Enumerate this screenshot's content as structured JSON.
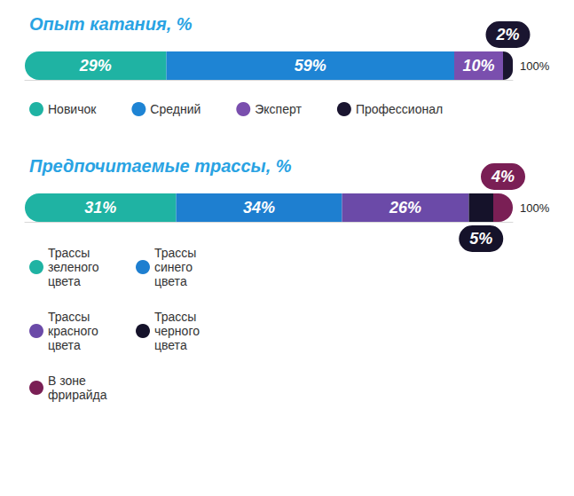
{
  "chart_data": [
    {
      "type": "bar",
      "title": "Опыт катания, %",
      "orientation": "horizontal",
      "stacked": true,
      "data_labels": true,
      "tick_labels": "x",
      "legend": "bottom",
      "categories": [
        null
      ],
      "xlim": [
        0,
        100
      ],
      "xticks": [
        {
          "value": 100,
          "label": "100%"
        }
      ],
      "series": [
        {
          "name": "Новичок",
          "color": "#1fb3a3",
          "values": [
            29
          ],
          "value_labels": [
            "29%"
          ]
        },
        {
          "name": "Средний",
          "color": "#1e84d4",
          "values": [
            59
          ],
          "value_labels": [
            "59%"
          ]
        },
        {
          "name": "Эксперт",
          "color": "#7a4fae",
          "values": [
            10
          ],
          "value_labels": [
            "10%"
          ]
        },
        {
          "name": "Профессионал",
          "color": "#1a1530",
          "values": [
            2
          ],
          "value_labels": [
            "2%"
          ]
        }
      ]
    },
    {
      "type": "bar",
      "title": "Предпочитаемые трассы, %",
      "orientation": "horizontal",
      "stacked": true,
      "data_labels": true,
      "tick_labels": "x",
      "legend": "bottom",
      "categories": [
        null
      ],
      "xlim": [
        0,
        100
      ],
      "xticks": [
        {
          "value": 100,
          "label": "100%"
        }
      ],
      "series": [
        {
          "name": "Трассы зеленого цвета",
          "color": "#1fb3a3",
          "values": [
            31
          ],
          "value_labels": [
            "31%"
          ]
        },
        {
          "name": "Трассы синего цвета",
          "color": "#1e7fd0",
          "values": [
            34
          ],
          "value_labels": [
            "34%"
          ]
        },
        {
          "name": "Трассы красного цвета",
          "color": "#6b4aa8",
          "values": [
            26
          ],
          "value_labels": [
            "26%"
          ]
        },
        {
          "name": "Трассы черного цвета",
          "color": "#15122a",
          "values": [
            5
          ],
          "value_labels": [
            "5%"
          ]
        },
        {
          "name": "В зоне фрирайда",
          "color": "#7a1f55",
          "values": [
            4
          ],
          "value_labels": [
            "4%"
          ]
        }
      ]
    }
  ]
}
